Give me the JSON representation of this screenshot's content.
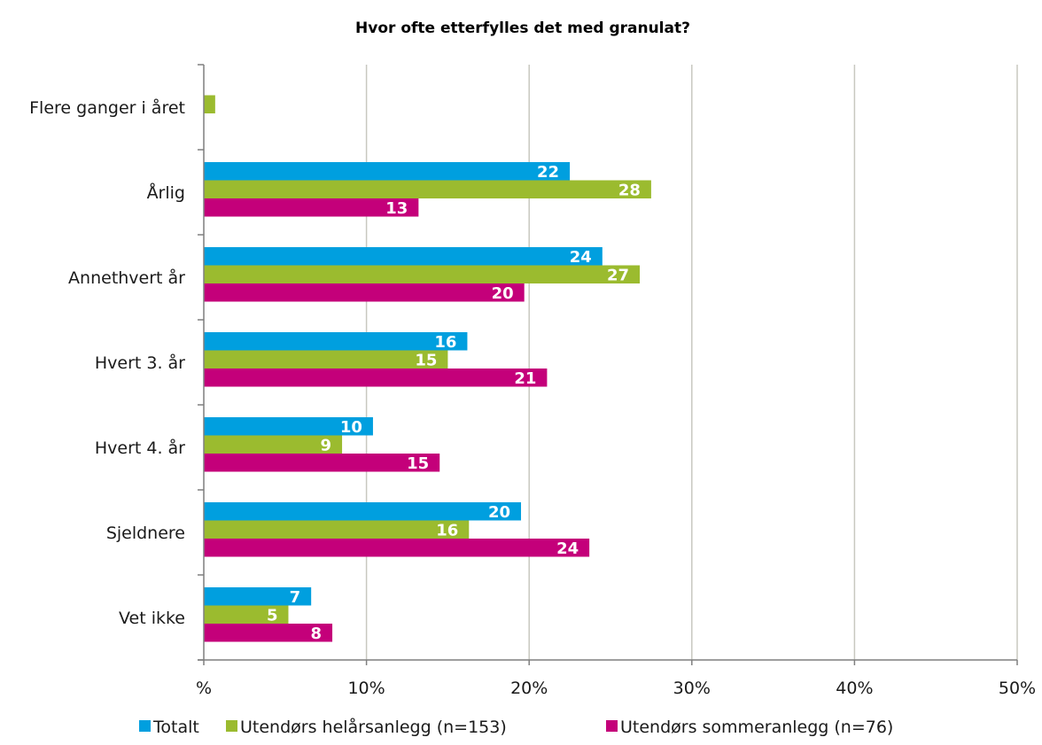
{
  "chart_data": {
    "type": "bar",
    "orientation": "horizontal",
    "title": "Hvor ofte etterfylles det med granulat?",
    "categories": [
      "Flere ganger i året",
      "Årlig",
      "Annethvert år",
      "Hvert 3. år",
      "Hvert 4. år",
      "Sjeldnere",
      "Vet ikke"
    ],
    "series": [
      {
        "name": "Totalt",
        "color": "#009fdf",
        "values": [
          null,
          22.5,
          24.5,
          16.2,
          10.4,
          19.5,
          6.6
        ],
        "labels": [
          "",
          "22",
          "24",
          "16",
          "10",
          "20",
          "7"
        ]
      },
      {
        "name": "Utendørs helårsanlegg (n=153)",
        "color": "#9bbb2f",
        "values": [
          0.7,
          27.5,
          26.8,
          15.0,
          8.5,
          16.3,
          5.2
        ],
        "labels": [
          "",
          "28",
          "27",
          "15",
          "9",
          "16",
          "5"
        ]
      },
      {
        "name": "Utendørs sommeranlegg (n=76)",
        "color": "#c4007a",
        "values": [
          null,
          13.2,
          19.7,
          21.1,
          14.5,
          23.7,
          7.9
        ],
        "labels": [
          "",
          "13",
          "20",
          "21",
          "15",
          "24",
          "8"
        ]
      }
    ],
    "xlim": [
      0,
      50
    ],
    "xticks": [
      0,
      10,
      20,
      30,
      40,
      50
    ],
    "xtick_labels": [
      "%",
      "10%",
      "20%",
      "30%",
      "40%",
      "50%"
    ],
    "grid": true,
    "legend_position": "bottom"
  }
}
